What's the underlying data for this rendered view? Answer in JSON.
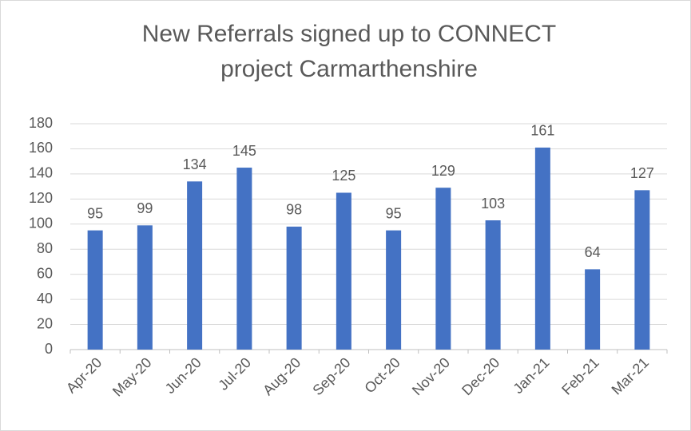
{
  "chart_data": {
    "type": "bar",
    "title": [
      "New Referrals signed up to CONNECT",
      "project Carmarthenshire"
    ],
    "categories": [
      "Apr-20",
      "May-20",
      "Jun-20",
      "Jul-20",
      "Aug-20",
      "Sep-20",
      "Oct-20",
      "Nov-20",
      "Dec-20",
      "Jan-21",
      "Feb-21",
      "Mar-21"
    ],
    "values": [
      95,
      99,
      134,
      145,
      98,
      125,
      95,
      129,
      103,
      161,
      64,
      127
    ],
    "color": "#4472c4",
    "ylim": [
      0,
      180
    ],
    "yticks": [
      0,
      20,
      40,
      60,
      80,
      100,
      120,
      140,
      160,
      180
    ],
    "grid": true
  }
}
